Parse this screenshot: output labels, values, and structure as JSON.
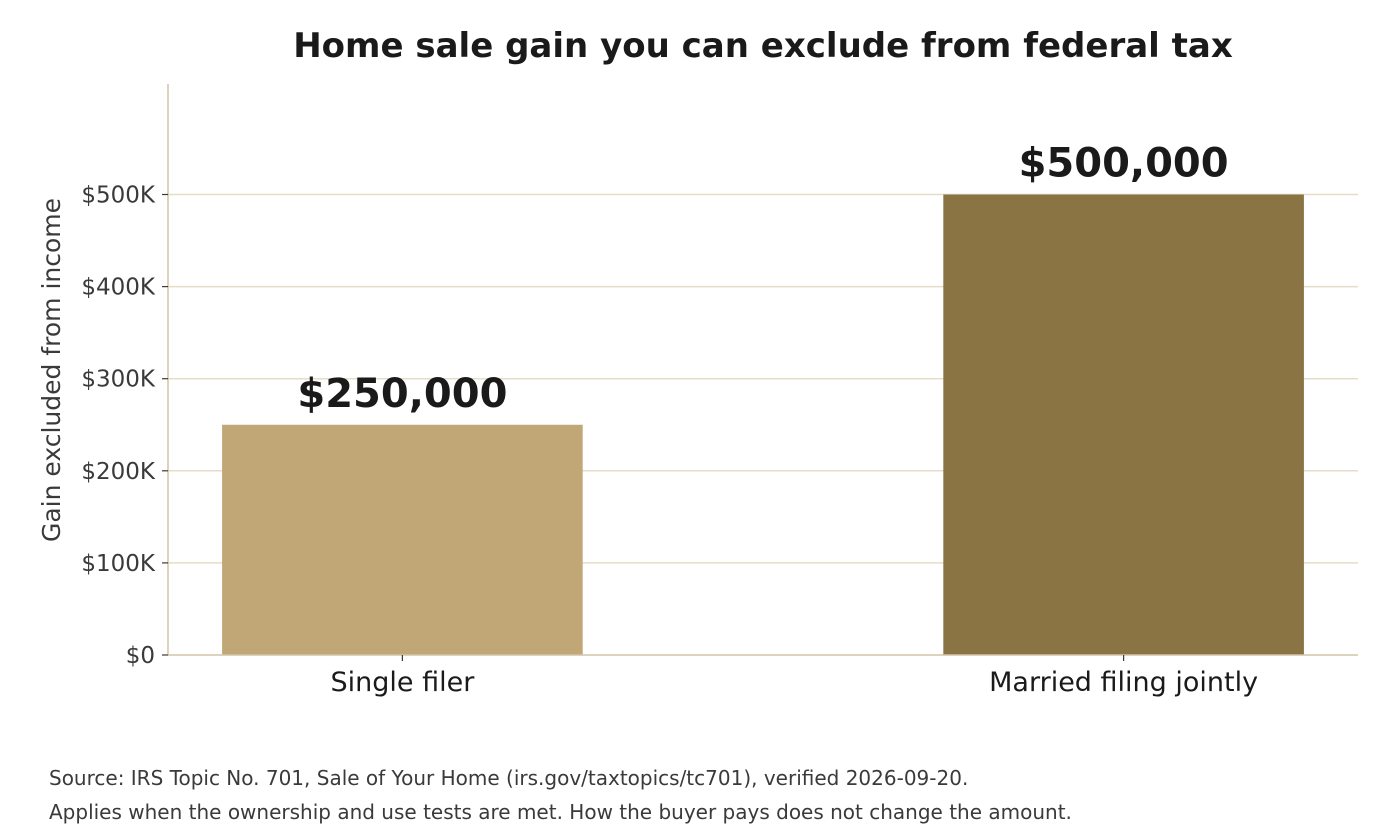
{
  "chart_data": {
    "type": "bar",
    "title": "Home sale gain you can exclude from federal tax",
    "xlabel": "",
    "ylabel": "Gain excluded from income",
    "categories": [
      "Single filer",
      "Married filing jointly"
    ],
    "values": [
      250000,
      500000
    ],
    "data_labels": [
      "$250,000",
      "$500,000"
    ],
    "colors": [
      "#c1a776",
      "#8a7444"
    ],
    "ylim": [
      0,
      620000
    ],
    "yticks": [
      0,
      100000,
      200000,
      300000,
      400000,
      500000
    ],
    "ytick_labels": [
      "$0",
      "$100K",
      "$200K",
      "$300K",
      "$400K",
      "$500K"
    ],
    "grid": true,
    "grid_axis": "y",
    "legend": "none"
  },
  "footnotes": [
    "Source: IRS Topic No. 701, Sale of Your Home (irs.gov/taxtopics/tc701), verified 2026-09-20.",
    "Applies when the ownership and use tests are met. How the buyer pays does not change the amount."
  ],
  "colors": {
    "grid": "#e6dcc8",
    "axis": "#d2c4a8",
    "text_dark": "#1a1a1a",
    "text_muted": "#3a3a3a"
  }
}
